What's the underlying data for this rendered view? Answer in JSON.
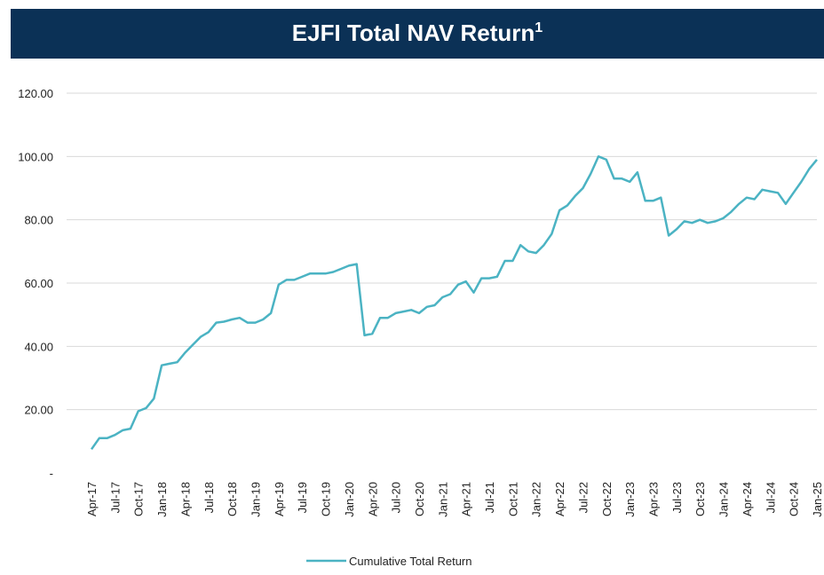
{
  "chart_data": {
    "type": "line",
    "title": "EJFI Total NAV Return",
    "title_superscript": "1",
    "categories": [
      "Apr-17",
      null,
      null,
      "Jul-17",
      null,
      null,
      "Oct-17",
      null,
      null,
      "Jan-18",
      null,
      null,
      "Apr-18",
      null,
      null,
      "Jul-18",
      null,
      null,
      "Oct-18",
      null,
      null,
      "Jan-19",
      null,
      null,
      "Apr-19",
      null,
      null,
      "Jul-19",
      null,
      null,
      "Oct-19",
      null,
      null,
      "Jan-20",
      null,
      null,
      "Apr-20",
      null,
      null,
      "Jul-20",
      null,
      null,
      "Oct-20",
      null,
      null,
      "Jan-21",
      null,
      null,
      "Apr-21",
      null,
      null,
      "Jul-21",
      null,
      null,
      "Oct-21",
      null,
      null,
      "Jan-22",
      null,
      null,
      "Apr-22",
      null,
      null,
      "Jul-22",
      null,
      null,
      "Oct-22",
      null,
      null,
      "Jan-23",
      null,
      null,
      "Apr-23",
      null,
      null,
      "Jul-23",
      null,
      null,
      "Oct-23",
      null,
      null,
      "Jan-24",
      null,
      null,
      "Apr-24",
      null,
      null,
      "Jul-24",
      null,
      null,
      "Oct-24",
      null,
      null,
      "Jan-25"
    ],
    "series": [
      {
        "name": "Cumulative Total Return",
        "color": "#4bb3c3",
        "values": [
          7.5,
          11,
          11,
          12,
          13.5,
          14,
          19.5,
          20.5,
          23.5,
          34,
          34.5,
          35,
          38,
          40.5,
          43,
          44.5,
          47.5,
          47.8,
          48.5,
          49,
          47.5,
          47.5,
          48.5,
          50.5,
          59.5,
          61,
          61,
          62,
          63,
          63,
          63,
          63.5,
          64.5,
          65.5,
          66,
          43.5,
          44,
          49,
          49,
          50.5,
          51,
          51.5,
          50.5,
          52.5,
          53,
          55.5,
          56.5,
          59.5,
          60.5,
          57,
          61.5,
          61.5,
          62,
          67,
          67,
          72,
          70,
          69.5,
          72,
          75.5,
          83,
          84.5,
          87.5,
          90,
          94.5,
          100,
          99,
          93,
          93,
          92,
          95,
          86,
          86,
          87,
          75,
          77,
          79.5,
          79,
          80,
          79,
          79.5,
          80.5,
          82.5,
          85,
          87,
          86.5,
          89.5,
          89,
          88.5,
          85,
          88.5,
          92,
          96,
          99
        ]
      }
    ],
    "ylim": [
      0,
      120
    ],
    "yticks": [
      {
        "value": 0,
        "label": "-"
      },
      {
        "value": 20,
        "label": "20.00"
      },
      {
        "value": 40,
        "label": "40.00"
      },
      {
        "value": 60,
        "label": "60.00"
      },
      {
        "value": 80,
        "label": "80.00"
      },
      {
        "value": 100,
        "label": "100.00"
      },
      {
        "value": 120,
        "label": "120.00"
      }
    ],
    "grid": true,
    "legend": "bottom"
  }
}
